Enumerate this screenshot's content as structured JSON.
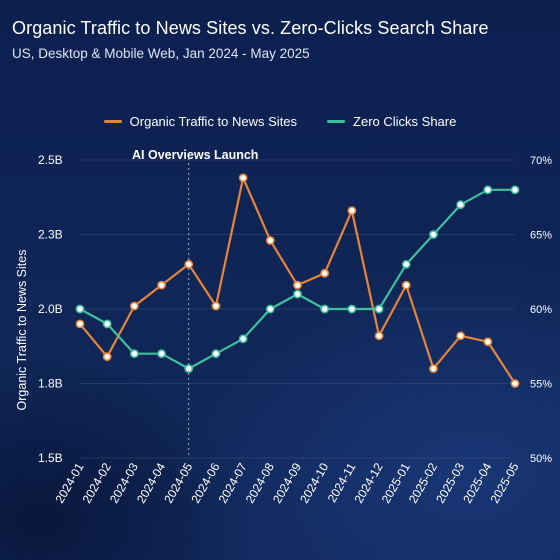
{
  "title": "Organic Traffic to News Sites vs. Zero-Clicks Search Share",
  "subtitle": "US, Desktop & Mobile Web, Jan 2024 - May 2025",
  "legend": {
    "series1": "Organic Traffic to News Sites",
    "series2": "Zero Clicks Share"
  },
  "colors": {
    "background": "#0e2350",
    "series1": "#e6853a",
    "series2": "#3fbf9f",
    "grid": "#3a4f7a",
    "text": "#ffffff"
  },
  "annotation": {
    "label": "AI Overviews Launch",
    "x": "2024-05"
  },
  "chart_data": {
    "type": "line",
    "x": [
      "2024-01",
      "2024-02",
      "2024-03",
      "2024-04",
      "2024-05",
      "2024-06",
      "2024-07",
      "2024-08",
      "2024-09",
      "2024-10",
      "2024-11",
      "2024-12",
      "2025-01",
      "2025-02",
      "2025-03",
      "2025-04",
      "2025-05"
    ],
    "series": [
      {
        "name": "Organic Traffic to News Sites",
        "axis": "left",
        "values": [
          1.95,
          1.84,
          2.01,
          2.08,
          2.15,
          2.01,
          2.44,
          2.23,
          2.08,
          2.12,
          2.33,
          1.91,
          2.08,
          1.8,
          1.91,
          1.89,
          1.75
        ]
      },
      {
        "name": "Zero Clicks Share",
        "axis": "right",
        "values": [
          60,
          59,
          57,
          57,
          56,
          57,
          58,
          60,
          61,
          60,
          60,
          60,
          63,
          65,
          67,
          68,
          68
        ]
      }
    ],
    "ylabel": "Organic Traffic to News Sites",
    "ylim": [
      1.5,
      2.5
    ],
    "y_ticks": [
      "1.5B",
      "1.8B",
      "2.0B",
      "2.3B",
      "2.5B"
    ],
    "y_tick_values": [
      1.5,
      1.75,
      2.0,
      2.25,
      2.5
    ],
    "y2lim": [
      50,
      70
    ],
    "y2_ticks": [
      "50%",
      "55%",
      "60%",
      "65%",
      "70%"
    ],
    "y2_tick_values": [
      50,
      55,
      60,
      65,
      70
    ],
    "grid": true,
    "legend_position": "top"
  }
}
